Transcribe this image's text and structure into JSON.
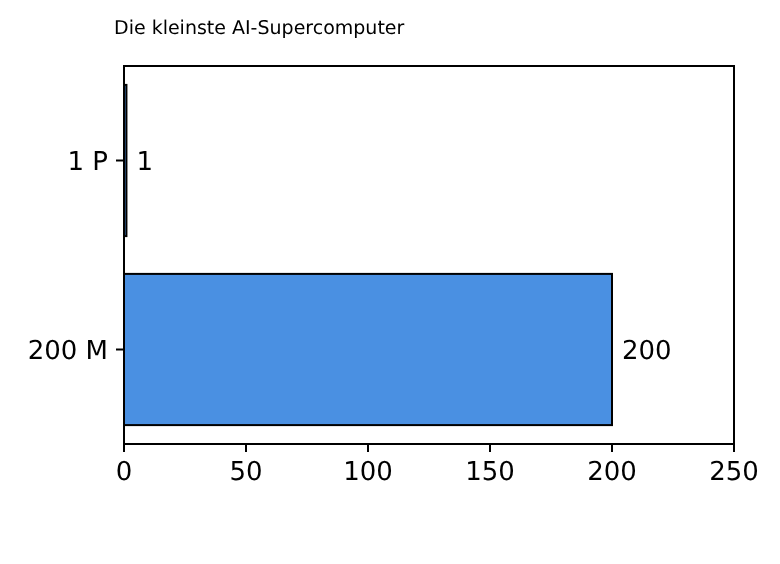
{
  "chart_data": {
    "type": "bar",
    "orientation": "horizontal",
    "title": "Die kleinste AI-Supercomputer",
    "categories": [
      "1 P",
      "200 M"
    ],
    "values": [
      1,
      200
    ],
    "color": "#4a90e2",
    "xlim": [
      0,
      250
    ],
    "xticks": [
      0,
      50,
      100,
      150,
      200,
      250
    ],
    "data_labels": true,
    "grid": false
  }
}
